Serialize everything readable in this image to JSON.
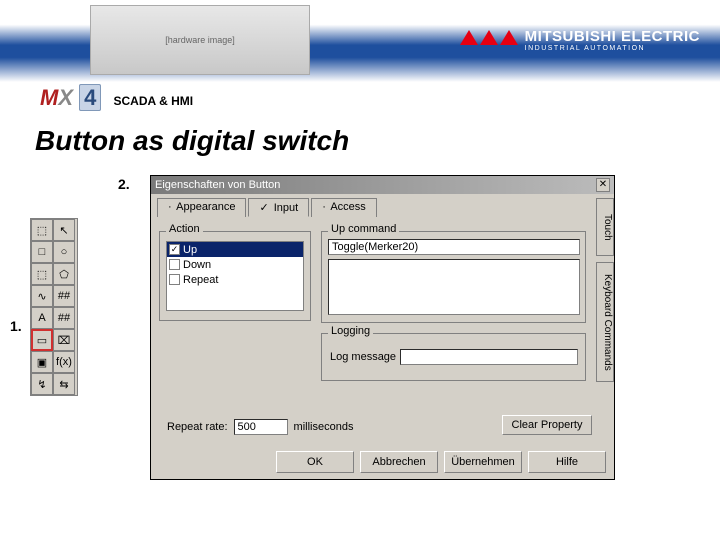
{
  "brand": {
    "name": "MITSUBISHI ELECTRIC",
    "sub": "INDUSTRIAL AUTOMATION",
    "accent": "#e60012"
  },
  "mx4": {
    "m": "M",
    "x": "X",
    "four": "4",
    "scada": "SCADA & HMI"
  },
  "title": "Button as digital switch",
  "steps": {
    "s1": "1.",
    "s2": "2."
  },
  "tools": [
    "⬚",
    "↖",
    "□",
    "○",
    "⬚",
    "⬠",
    "∿",
    "##",
    "A",
    "##",
    "▭",
    "⌧",
    "▣",
    "f(x)",
    "↯",
    "⇆"
  ],
  "dialog": {
    "title": "Eigenschaften von Button",
    "tabs": [
      {
        "label": "Appearance",
        "checked": false,
        "active": false
      },
      {
        "label": "Input",
        "checked": true,
        "active": true
      },
      {
        "label": "Access",
        "checked": false,
        "active": false
      }
    ],
    "action": {
      "legend": "Action",
      "items": [
        {
          "label": "Up",
          "checked": true,
          "selected": true
        },
        {
          "label": "Down",
          "checked": false,
          "selected": false
        },
        {
          "label": "Repeat",
          "checked": false,
          "selected": false
        }
      ]
    },
    "upcmd": {
      "legend": "Up command",
      "value": "Toggle(Merker20)"
    },
    "logging": {
      "legend": "Logging",
      "label": "Log message"
    },
    "repeat": {
      "label": "Repeat rate:",
      "value": "500",
      "unit": "milliseconds"
    },
    "clear": "Clear Property",
    "sideTabs": {
      "t1": "Touch",
      "t2": "Keyboard Commands"
    },
    "buttons": {
      "ok": "OK",
      "cancel": "Abbrechen",
      "apply": "Übernehmen",
      "help": "Hilfe"
    }
  }
}
